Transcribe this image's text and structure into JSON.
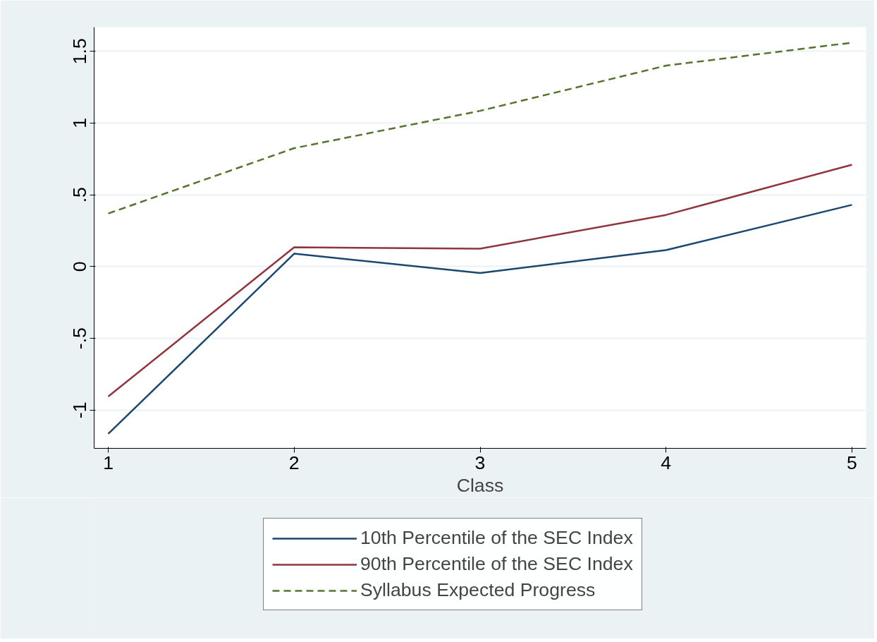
{
  "chart_data": {
    "type": "line",
    "xlabel": "Class",
    "x": [
      1,
      2,
      3,
      4,
      5
    ],
    "series": [
      {
        "name": "10th Percentile of the SEC Index",
        "color": "#1a476f",
        "values": [
          -1.165,
          0.09,
          -0.045,
          0.115,
          0.43
        ],
        "line_style": "solid"
      },
      {
        "name": "90th Percentile of the SEC Index",
        "color": "#90353b",
        "values": [
          -0.905,
          0.135,
          0.125,
          0.36,
          0.71
        ],
        "line_style": "solid"
      },
      {
        "name": "Syllabus Expected Progress",
        "color": "#55752f",
        "values": [
          0.37,
          0.825,
          1.085,
          1.4,
          1.56
        ],
        "line_style": "dashed"
      }
    ],
    "xlim": [
      0.924,
      5.076
    ],
    "ylim": [
      -1.266,
      1.668
    ],
    "xticks": [
      1,
      2,
      3,
      4,
      5
    ],
    "yticks": [
      -1,
      {
        "value": -0.5,
        "label": "-.5"
      },
      0,
      {
        "value": 0.5,
        "label": ".5"
      },
      1,
      1.5
    ],
    "grid": "y",
    "legend": "bottom",
    "marker": "none"
  }
}
